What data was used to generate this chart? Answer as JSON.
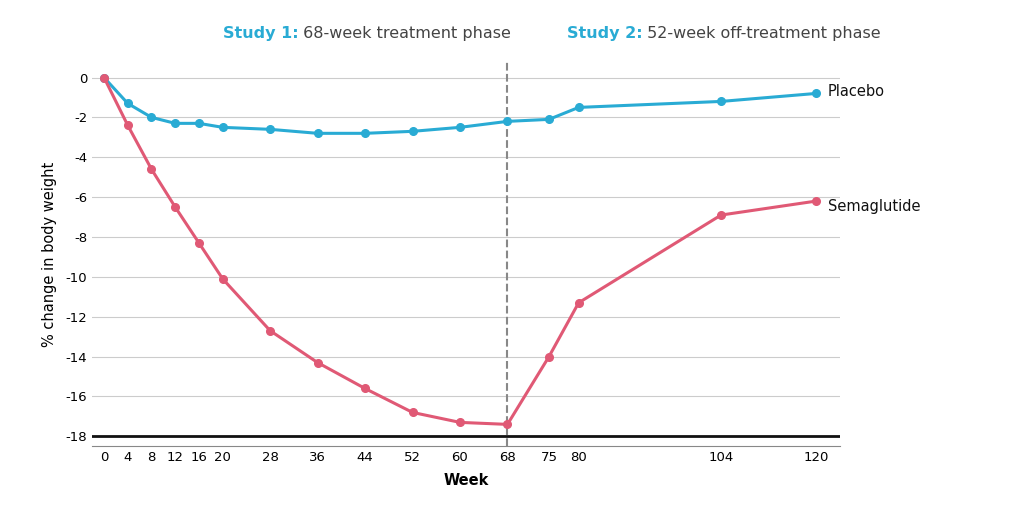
{
  "placebo_x": [
    0,
    4,
    8,
    12,
    16,
    20,
    28,
    36,
    44,
    52,
    60,
    68,
    75,
    80,
    104,
    120
  ],
  "placebo_y": [
    0,
    -1.3,
    -2.0,
    -2.3,
    -2.3,
    -2.5,
    -2.6,
    -2.8,
    -2.8,
    -2.7,
    -2.5,
    -2.2,
    -2.1,
    -1.5,
    -1.2,
    -0.8
  ],
  "sema_x": [
    0,
    4,
    8,
    12,
    16,
    20,
    28,
    36,
    44,
    52,
    60,
    68,
    75,
    80,
    104,
    120
  ],
  "sema_y": [
    0,
    -2.4,
    -4.6,
    -6.5,
    -8.3,
    -10.1,
    -12.7,
    -14.3,
    -15.6,
    -16.8,
    -17.3,
    -17.4,
    -14.0,
    -11.3,
    -6.9,
    -6.2
  ],
  "placebo_color": "#29ABD4",
  "sema_color": "#E05975",
  "title_study1_bold": "Study 1:",
  "title_study1_rest": " 68-week treatment phase",
  "title_study2_bold": "Study 2:",
  "title_study2_rest": " 52-week off-treatment phase",
  "title_color": "#29ABD4",
  "title_rest_color": "#444444",
  "ylabel": "% change in body weight",
  "xlabel": "Week",
  "xticks": [
    0,
    4,
    8,
    12,
    16,
    20,
    28,
    36,
    44,
    52,
    60,
    68,
    75,
    80,
    104,
    120
  ],
  "yticks": [
    0,
    -2,
    -4,
    -6,
    -8,
    -10,
    -12,
    -14,
    -16,
    -18
  ],
  "ylim": [
    -18.5,
    0.8
  ],
  "xlim": [
    -2,
    124
  ],
  "dashed_x": 68,
  "placebo_label": "Placebo",
  "sema_label": "Semaglutide",
  "background_color": "#ffffff",
  "grid_color": "#cccccc",
  "bottom_line_color": "#111111",
  "label_fontsize": 10.5,
  "title_fontsize": 11.5,
  "tick_fontsize": 9.5,
  "axis_label_fontsize": 10.5
}
